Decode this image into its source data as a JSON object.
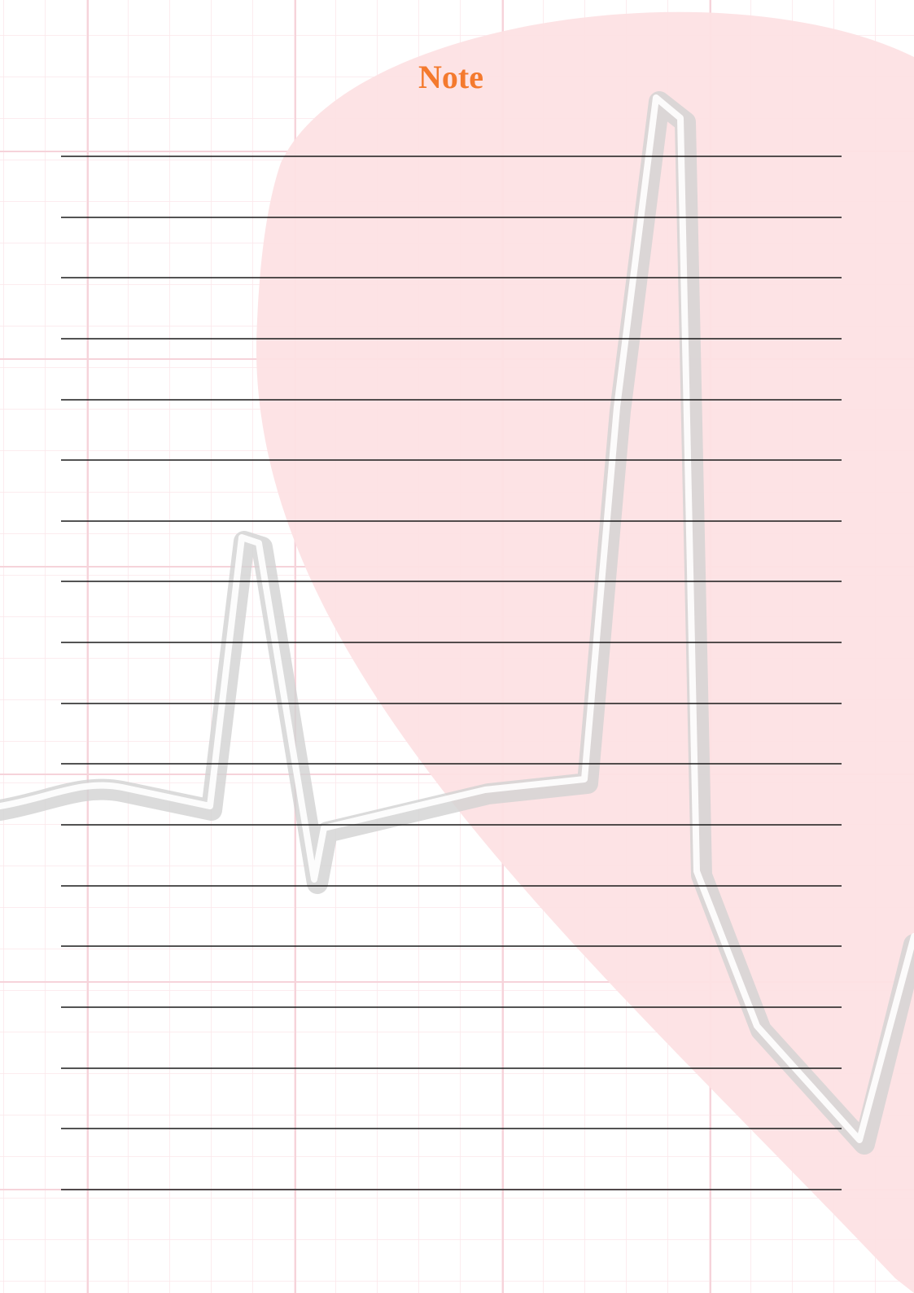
{
  "title": "Note"
}
